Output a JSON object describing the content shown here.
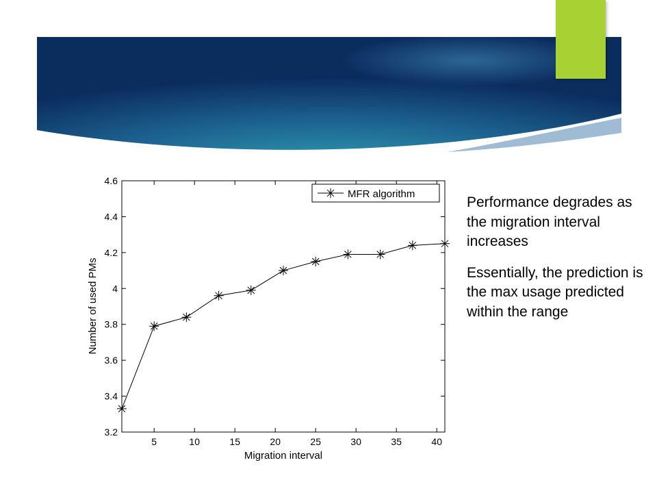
{
  "theme": {
    "banner_dark": "#0b2d5e",
    "banner_light": "#2a86a8",
    "accent": "#a8d134"
  },
  "bullets": [
    "Performance degrades as the migration interval increases",
    "Essentially, the prediction is the max usage predicted within the range"
  ],
  "chart_data": {
    "type": "line",
    "title": "",
    "xlabel": "Migration interval",
    "ylabel": "Number of used PMs",
    "xlim": [
      1,
      41
    ],
    "ylim": [
      3.2,
      4.6
    ],
    "xticks": [
      5,
      10,
      15,
      20,
      25,
      30,
      35,
      40
    ],
    "yticks": [
      3.2,
      3.4,
      3.6,
      3.8,
      4,
      4.2,
      4.4,
      4.6
    ],
    "ytick_labels": [
      "3.2",
      "3.4",
      "3.6",
      "3.8",
      "4",
      "4.2",
      "4.4",
      "4.6"
    ],
    "grid": false,
    "legend": "top-right",
    "series": [
      {
        "name": "MFR algorithm",
        "marker": "asterisk",
        "x": [
          1,
          5,
          9,
          13,
          17,
          21,
          25,
          29,
          33,
          37,
          41
        ],
        "y": [
          3.33,
          3.79,
          3.84,
          3.96,
          3.99,
          4.1,
          4.15,
          4.19,
          4.19,
          4.24,
          4.25
        ]
      }
    ]
  }
}
